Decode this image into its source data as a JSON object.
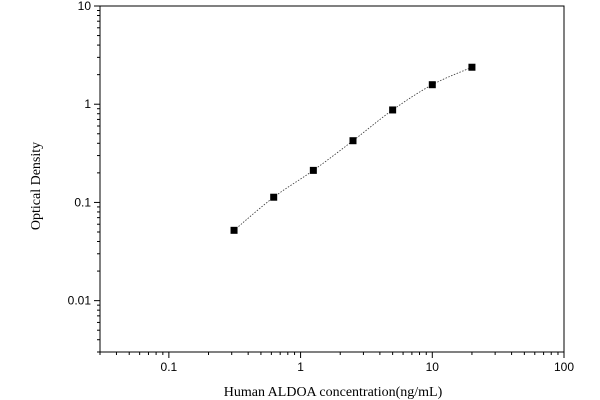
{
  "chart_data": {
    "type": "scatter",
    "xlabel": "Human ALDOA concentration(ng/mL)",
    "ylabel": "Optical Density",
    "x_scale": "log",
    "y_scale": "log",
    "xlim": [
      0.03,
      100
    ],
    "ylim": [
      0.003,
      10
    ],
    "x_ticks": [
      0.1,
      1,
      10,
      100
    ],
    "x_tick_labels": [
      "0.1",
      "1",
      "10",
      "100"
    ],
    "y_ticks": [
      0.01,
      0.1,
      1,
      10
    ],
    "y_tick_labels": [
      "0.01",
      "0.1",
      "1",
      "10"
    ],
    "grid": false,
    "series": [
      {
        "marker": "square",
        "fit_line": "dotted",
        "x": [
          0.3125,
          0.625,
          1.25,
          2.5,
          5,
          10,
          20
        ],
        "y": [
          0.052,
          0.113,
          0.212,
          0.425,
          0.874,
          1.58,
          2.38
        ]
      }
    ]
  }
}
